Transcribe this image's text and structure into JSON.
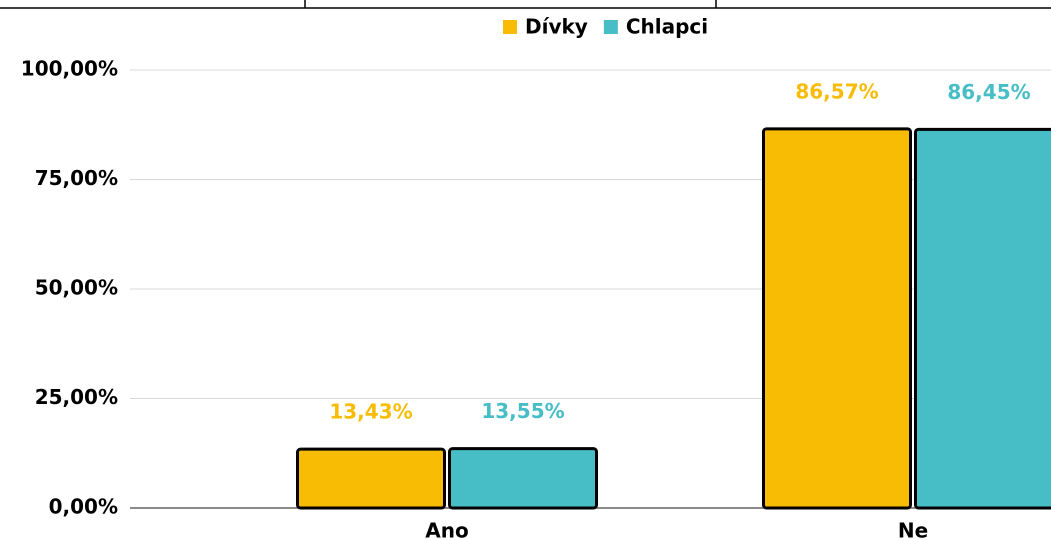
{
  "chart_data": {
    "type": "bar",
    "categories": [
      "Ano",
      "Ne"
    ],
    "series": [
      {
        "name": "Dívky",
        "color": "#f9bc05",
        "values": [
          13.43,
          86.57
        ],
        "value_labels": [
          "13,43%",
          "86,57%"
        ]
      },
      {
        "name": "Chlapci",
        "color": "#47bdc6",
        "values": [
          13.55,
          86.45
        ],
        "value_labels": [
          "13,55%",
          "86,45%"
        ]
      }
    ],
    "ylim": [
      0,
      100
    ],
    "yticks": [
      {
        "value": 0,
        "label": "0,00%"
      },
      {
        "value": 25,
        "label": "25,00%"
      },
      {
        "value": 50,
        "label": "50,00%"
      },
      {
        "value": 75,
        "label": "75,00%"
      },
      {
        "value": 100,
        "label": "100,00%"
      }
    ],
    "grid": true,
    "legend": "top"
  }
}
